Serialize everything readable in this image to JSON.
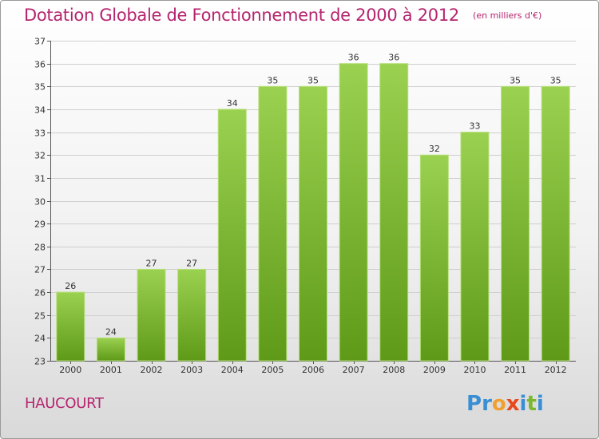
{
  "header": {
    "title": "Dotation Globale de Fonctionnement de 2000 à 2012",
    "subtitle": "(en milliers d'€)"
  },
  "footer": {
    "commune": "HAUCOURT",
    "brand": "Proxiti",
    "brand_letters": [
      "P",
      "r",
      "o",
      "x",
      "i",
      "t",
      "i"
    ],
    "brand_colors": [
      "#3a8fd4",
      "#3a8fd4",
      "#f0a030",
      "#e8481c",
      "#3a8fd4",
      "#7ab82e",
      "#3a8fd4"
    ]
  },
  "colors": {
    "accent": "#b5246e",
    "bar_top": "#9bd150",
    "bar_bottom": "#5e9a18",
    "grid": "#cfcfcf"
  },
  "chart_data": {
    "type": "bar",
    "categories": [
      "2000",
      "2001",
      "2002",
      "2003",
      "2004",
      "2005",
      "2006",
      "2007",
      "2008",
      "2009",
      "2010",
      "2011",
      "2012"
    ],
    "values": [
      26,
      24,
      27,
      27,
      34,
      35,
      35,
      36,
      36,
      32,
      33,
      35,
      35
    ],
    "title": "Dotation Globale de Fonctionnement de 2000 à 2012",
    "subtitle": "(en milliers d'€)",
    "xlabel": "",
    "ylabel": "",
    "ylim": [
      23,
      37
    ],
    "yticks": [
      23,
      24,
      25,
      26,
      27,
      28,
      29,
      30,
      31,
      32,
      33,
      34,
      35,
      36,
      37
    ],
    "grid": true,
    "data_labels": true
  }
}
